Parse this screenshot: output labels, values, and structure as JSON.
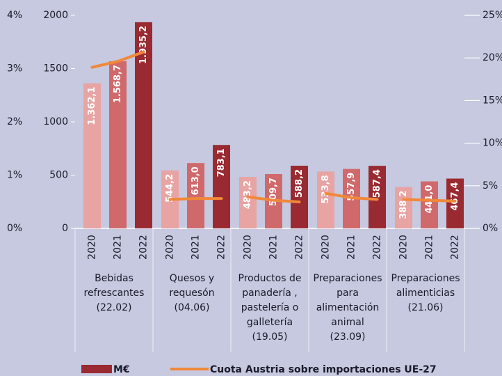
{
  "chart_data": {
    "type": "bar_line",
    "categories": [
      "Bebidas\nrefrescantes\n(22.02)",
      "Quesos y\nrequesón\n(04.06)",
      "Productos de\npanadería ,\npastelería o\ngalletería\n(19.05)",
      "Preparaciones\npara\nalimentación\nanimal\n(23.09)",
      "Preparaciones\nalimenticias\n(21.06)"
    ],
    "years": [
      "2020",
      "2021",
      "2022"
    ],
    "bars": {
      "name": "M€",
      "colors": [
        "#e8a3a3",
        "#d0696b",
        "#992a31"
      ],
      "values": [
        [
          1362.1,
          1568.7,
          1935.2
        ],
        [
          544.2,
          613.0,
          783.1
        ],
        [
          483.2,
          509.7,
          588.2
        ],
        [
          533.8,
          557.9,
          587.4
        ],
        [
          388.2,
          441.0,
          467.4
        ]
      ],
      "value_labels": [
        [
          "1.362,1",
          "1.568,7",
          "1.935,2"
        ],
        [
          "544,2",
          "613,0",
          "783,1"
        ],
        [
          "483,2",
          "509,7",
          "588,2"
        ],
        [
          "533,8",
          "557,9",
          "587,4"
        ],
        [
          "388,2",
          "441,0",
          "467,4"
        ]
      ]
    },
    "line": {
      "name": "Cuota Austria sobre importaciones UE-27",
      "color": "#f0883a",
      "axis": "y2",
      "values": [
        [
          18.9,
          19.6,
          20.7
        ],
        [
          3.4,
          3.5,
          3.5
        ],
        [
          3.7,
          3.3,
          3.1
        ],
        [
          4.1,
          3.6,
          3.4
        ],
        [
          3.4,
          3.3,
          3.2
        ]
      ]
    },
    "ylim": [
      0,
      2000
    ],
    "yticks": [
      0,
      500,
      1000,
      1500,
      2000
    ],
    "y2lim": [
      0,
      25
    ],
    "y2ticks": [
      {
        "value": 0,
        "label": "0%"
      },
      {
        "value": 5,
        "label": "5%"
      },
      {
        "value": 10,
        "label": "10%"
      },
      {
        "value": 15,
        "label": "15%"
      },
      {
        "value": 20,
        "label": "20%"
      },
      {
        "value": 25,
        "label": "25%"
      }
    ],
    "y3lim": [
      0,
      4
    ],
    "y3ticks": [
      {
        "value": 0,
        "label": "0%"
      },
      {
        "value": 1,
        "label": "1%"
      },
      {
        "value": 2,
        "label": "2%"
      },
      {
        "value": 3,
        "label": "3%"
      },
      {
        "value": 4,
        "label": "4%"
      }
    ]
  }
}
